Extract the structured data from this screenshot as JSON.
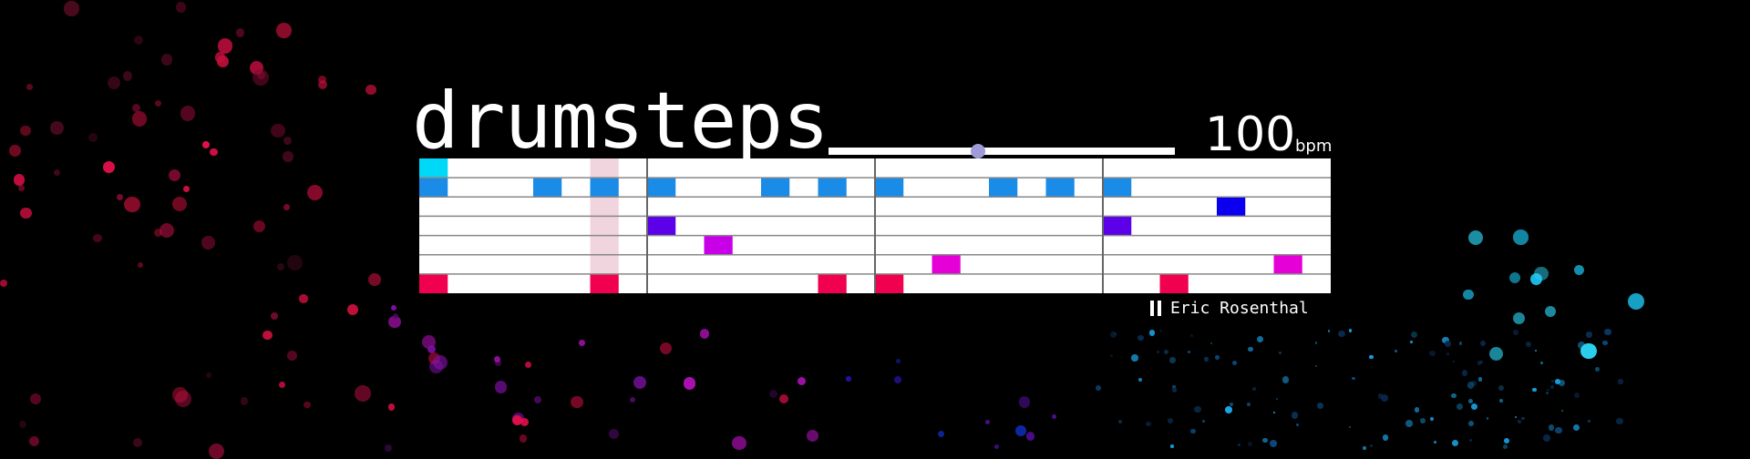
{
  "app": {
    "title": "drumsteps"
  },
  "tempo": {
    "value": "100",
    "unit": "bpm",
    "min": 40,
    "max": 240
  },
  "sequencer": {
    "rows": 7,
    "steps": 32,
    "bars": 4,
    "playhead_step": 6,
    "active_cells": [
      {
        "row": 0,
        "step": 0,
        "color": "#00d8f8"
      },
      {
        "row": 1,
        "step": 0,
        "color": "#1a8be6"
      },
      {
        "row": 1,
        "step": 4,
        "color": "#1a8be6"
      },
      {
        "row": 1,
        "step": 6,
        "color": "#1a8be6"
      },
      {
        "row": 1,
        "step": 8,
        "color": "#1a8be6"
      },
      {
        "row": 1,
        "step": 12,
        "color": "#1a8be6"
      },
      {
        "row": 1,
        "step": 14,
        "color": "#1a8be6"
      },
      {
        "row": 1,
        "step": 16,
        "color": "#1a8be6"
      },
      {
        "row": 1,
        "step": 20,
        "color": "#1a8be6"
      },
      {
        "row": 1,
        "step": 22,
        "color": "#1a8be6"
      },
      {
        "row": 1,
        "step": 24,
        "color": "#1a8be6"
      },
      {
        "row": 2,
        "step": 28,
        "color": "#0a00ef"
      },
      {
        "row": 3,
        "step": 8,
        "color": "#5b00e8"
      },
      {
        "row": 3,
        "step": 24,
        "color": "#5b00e8"
      },
      {
        "row": 4,
        "step": 10,
        "color": "#c800e8"
      },
      {
        "row": 5,
        "step": 18,
        "color": "#e600d8"
      },
      {
        "row": 5,
        "step": 30,
        "color": "#e600d8"
      },
      {
        "row": 6,
        "step": 0,
        "color": "#f0004e"
      },
      {
        "row": 6,
        "step": 6,
        "color": "#f0004e"
      },
      {
        "row": 6,
        "step": 14,
        "color": "#f0004e"
      },
      {
        "row": 6,
        "step": 16,
        "color": "#f0004e"
      },
      {
        "row": 6,
        "step": 26,
        "color": "#f0004e"
      }
    ]
  },
  "footer": {
    "author": "Eric Rosenthal",
    "control_icon": "pause-icon"
  },
  "colors": {
    "background": "#000000",
    "grid_background": "#ffffff",
    "grid_lines": "#888888",
    "playhead": "#f0d4de",
    "slider_thumb": "#9f9bd6"
  },
  "particles": {
    "description_colors": [
      "#e8104a",
      "#c0103a",
      "#6a0a2a",
      "#c012c8",
      "#7a10a0",
      "#3a14d8",
      "#1030c8",
      "#1aa6e8",
      "#2ad0f0"
    ]
  }
}
